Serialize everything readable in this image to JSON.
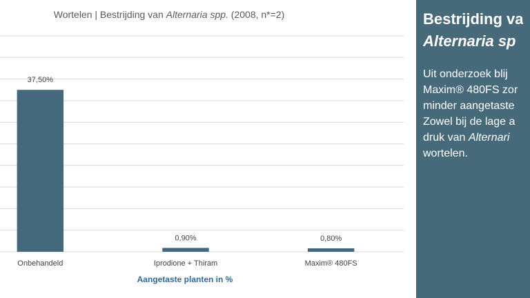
{
  "chart_data": {
    "type": "bar",
    "title_parts": [
      "Wortelen | Bestrijding van ",
      {
        "text": "Alternaria spp.",
        "style": "italic"
      },
      " (2008, n*=2)"
    ],
    "categories": [
      "Onbehandeld",
      "Iprodione + Thiram",
      "Maxim® 480FS"
    ],
    "values": [
      37.5,
      0.9,
      0.8
    ],
    "value_labels": [
      "37,50%",
      "0,90%",
      "0,80%"
    ],
    "x_label": "Aangetaste planten in %",
    "color": "#44697d",
    "ylim": [
      0,
      50
    ],
    "yticks": [
      0,
      5,
      10,
      15,
      20,
      25,
      30,
      35,
      40,
      45,
      50
    ],
    "grid": true
  },
  "side_panel": {
    "heading_lines": [
      [
        "Bestrijding va"
      ],
      [
        {
          "text": "Alternaria sp",
          "style": "italic"
        }
      ]
    ],
    "body_lines": [
      [
        "Uit onderzoek blij"
      ],
      [
        "Maxim® 480FS zor"
      ],
      [
        "minder aangetaste"
      ],
      [
        "Zowel bij de lage a"
      ],
      [
        "druk van ",
        {
          "text": "Alternari",
          "style": "italic"
        }
      ],
      [
        "wortelen."
      ]
    ]
  }
}
